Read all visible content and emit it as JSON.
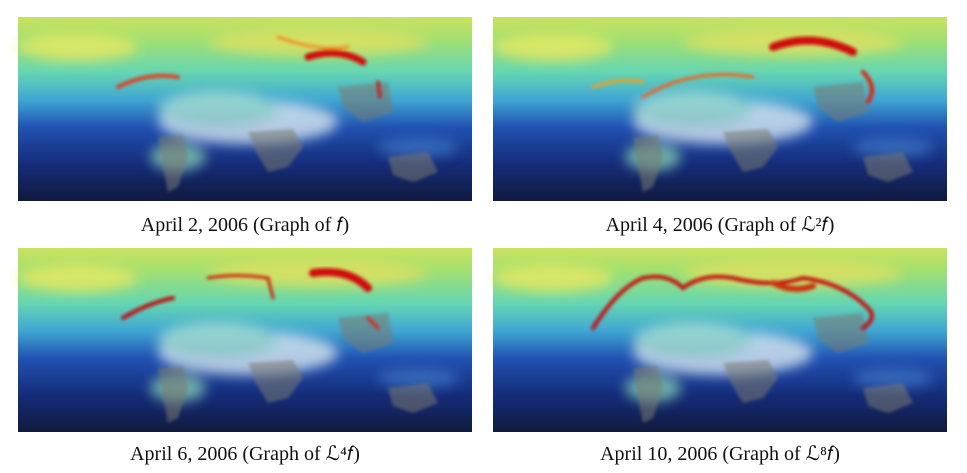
{
  "panels": [
    {
      "caption": "April 2, 2006  (Graph of 𝑓)"
    },
    {
      "caption": "April 4, 2006  (Graph of ℒ²𝑓)"
    },
    {
      "caption": "April 6, 2006  (Graph of ℒ⁴𝑓)"
    },
    {
      "caption": "April 10, 2006  (Graph of ℒ⁸𝑓)"
    }
  ]
}
